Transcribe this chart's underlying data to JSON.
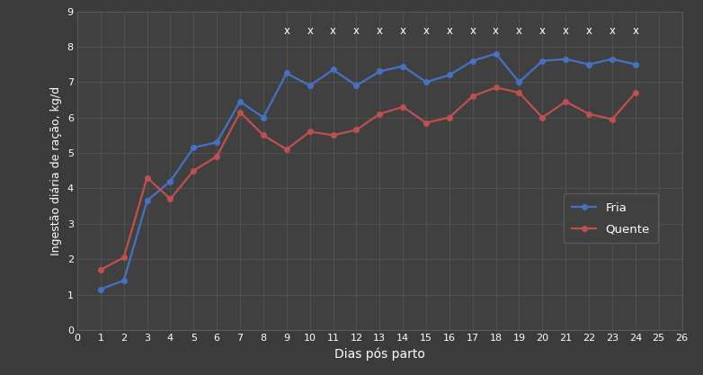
{
  "fria_x": [
    1,
    2,
    3,
    4,
    5,
    6,
    7,
    8,
    9,
    10,
    11,
    12,
    13,
    14,
    15,
    16,
    17,
    18,
    19,
    20,
    21,
    22,
    23,
    24
  ],
  "fria_y": [
    1.15,
    1.4,
    3.65,
    4.2,
    5.15,
    5.3,
    6.45,
    6.0,
    7.25,
    6.9,
    7.35,
    6.9,
    7.3,
    7.45,
    7.0,
    7.2,
    7.6,
    7.8,
    7.0,
    7.6,
    7.65,
    7.5,
    7.65,
    7.5
  ],
  "quente_x": [
    1,
    2,
    3,
    4,
    5,
    6,
    7,
    8,
    9,
    10,
    11,
    12,
    13,
    14,
    15,
    16,
    17,
    18,
    19,
    20,
    21,
    22,
    23,
    24
  ],
  "quente_y": [
    1.7,
    2.05,
    4.3,
    3.7,
    4.5,
    4.9,
    6.15,
    5.5,
    5.1,
    5.6,
    5.5,
    5.65,
    6.1,
    6.3,
    5.85,
    6.0,
    6.6,
    6.85,
    6.7,
    6.0,
    6.45,
    6.1,
    5.95,
    6.7
  ],
  "x_marks": [
    9,
    10,
    11,
    12,
    13,
    14,
    15,
    16,
    17,
    18,
    19,
    20,
    21,
    22,
    23,
    24
  ],
  "x_mark_y": 8.45,
  "fria_color": "#4472c4",
  "quente_color": "#c0504d",
  "background_color": "#3b3b3b",
  "plot_bg_color": "#404040",
  "grid_color": "#595959",
  "text_color": "#ffffff",
  "xlabel": "Dias pós parto",
  "ylabel": "Ingestão diária de ração, kg/d",
  "xlim": [
    0,
    26
  ],
  "ylim": [
    0,
    9
  ],
  "xticks": [
    0,
    1,
    2,
    3,
    4,
    5,
    6,
    7,
    8,
    9,
    10,
    11,
    12,
    13,
    14,
    15,
    16,
    17,
    18,
    19,
    20,
    21,
    22,
    23,
    24,
    25,
    26
  ],
  "yticks": [
    0,
    1,
    2,
    3,
    4,
    5,
    6,
    7,
    8,
    9
  ],
  "legend_fria": "Fria",
  "legend_quente": "Quente",
  "marker_size": 4,
  "line_width": 1.6
}
